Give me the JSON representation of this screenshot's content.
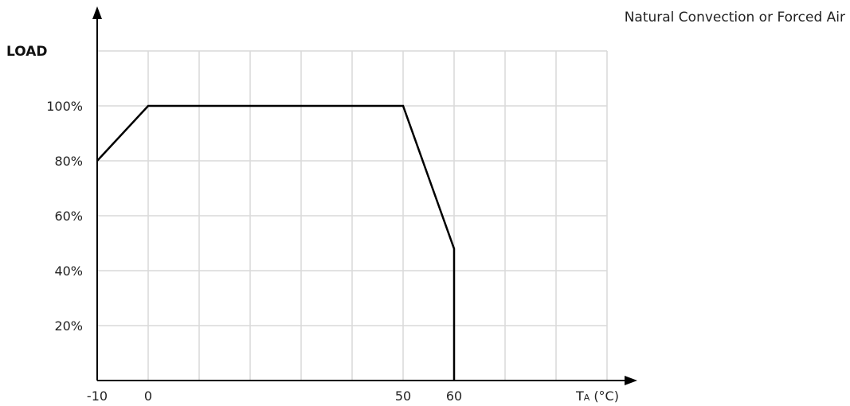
{
  "chart_data": {
    "type": "line",
    "title": "Natural Convection or Forced Air",
    "ylabel": "LOAD",
    "xlabel_main": "T",
    "xlabel_sub": "A",
    "xlabel_unit": "(°C)",
    "x_ticks": [
      "-10",
      "0",
      "50",
      "60"
    ],
    "y_ticks": [
      "20%",
      "40%",
      "60%",
      "80%",
      "100%"
    ],
    "xlim": [
      -10,
      90
    ],
    "ylim": [
      0,
      120
    ],
    "grid": true,
    "series": [
      {
        "x": [
          -10,
          0,
          50,
          60,
          60
        ],
        "y": [
          80,
          100,
          100,
          48,
          0
        ]
      }
    ]
  }
}
